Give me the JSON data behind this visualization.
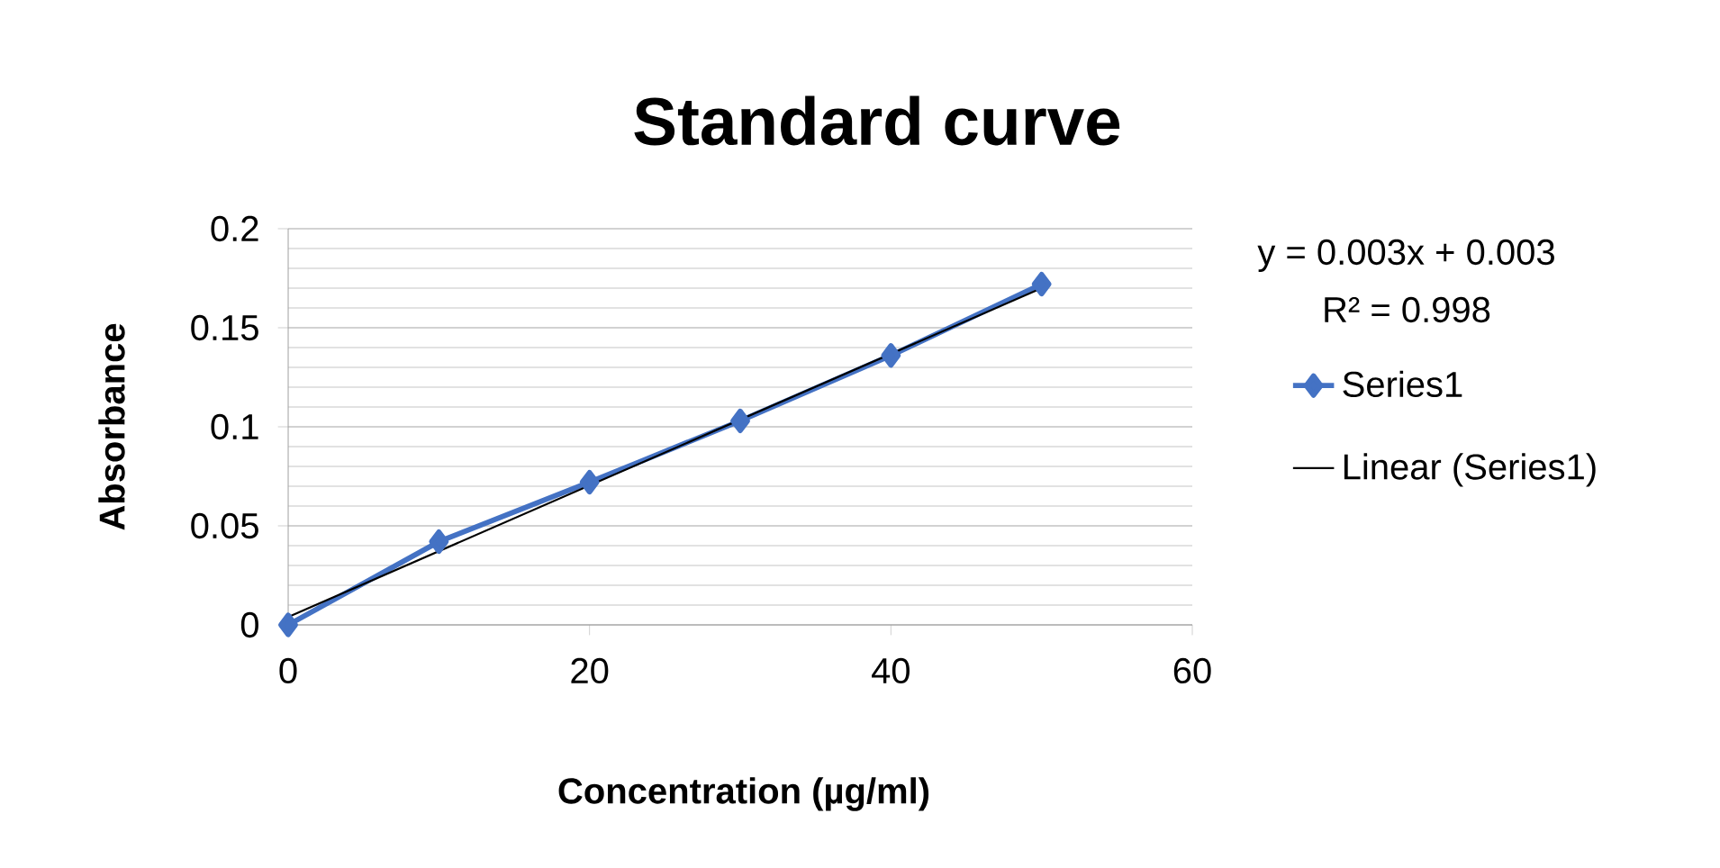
{
  "chart_data": {
    "type": "line",
    "title": "Standard curve",
    "xlabel": "Concentration (µg/ml)",
    "ylabel": "Absorbance",
    "xlim": [
      0,
      60
    ],
    "xticks": [
      0,
      20,
      40,
      60
    ],
    "ylim": [
      0,
      0.2
    ],
    "yticks": [
      0,
      0.05,
      0.1,
      0.15,
      0.2
    ],
    "grid": "y",
    "legend": "right",
    "annotations": [
      "y = 0.003x + 0.003",
      "R² = 0.998"
    ],
    "series": [
      {
        "name": "Series1",
        "color": "#4472c4",
        "marker": "diamond",
        "x": [
          0,
          10,
          20,
          30,
          40,
          50
        ],
        "values": [
          0,
          0.042,
          0.072,
          0.103,
          0.136,
          0.172
        ]
      },
      {
        "name": "Linear (Series1)",
        "color": "#000000",
        "marker": "none",
        "x": [
          0,
          50
        ],
        "values": [
          0.004,
          0.17
        ]
      }
    ]
  }
}
